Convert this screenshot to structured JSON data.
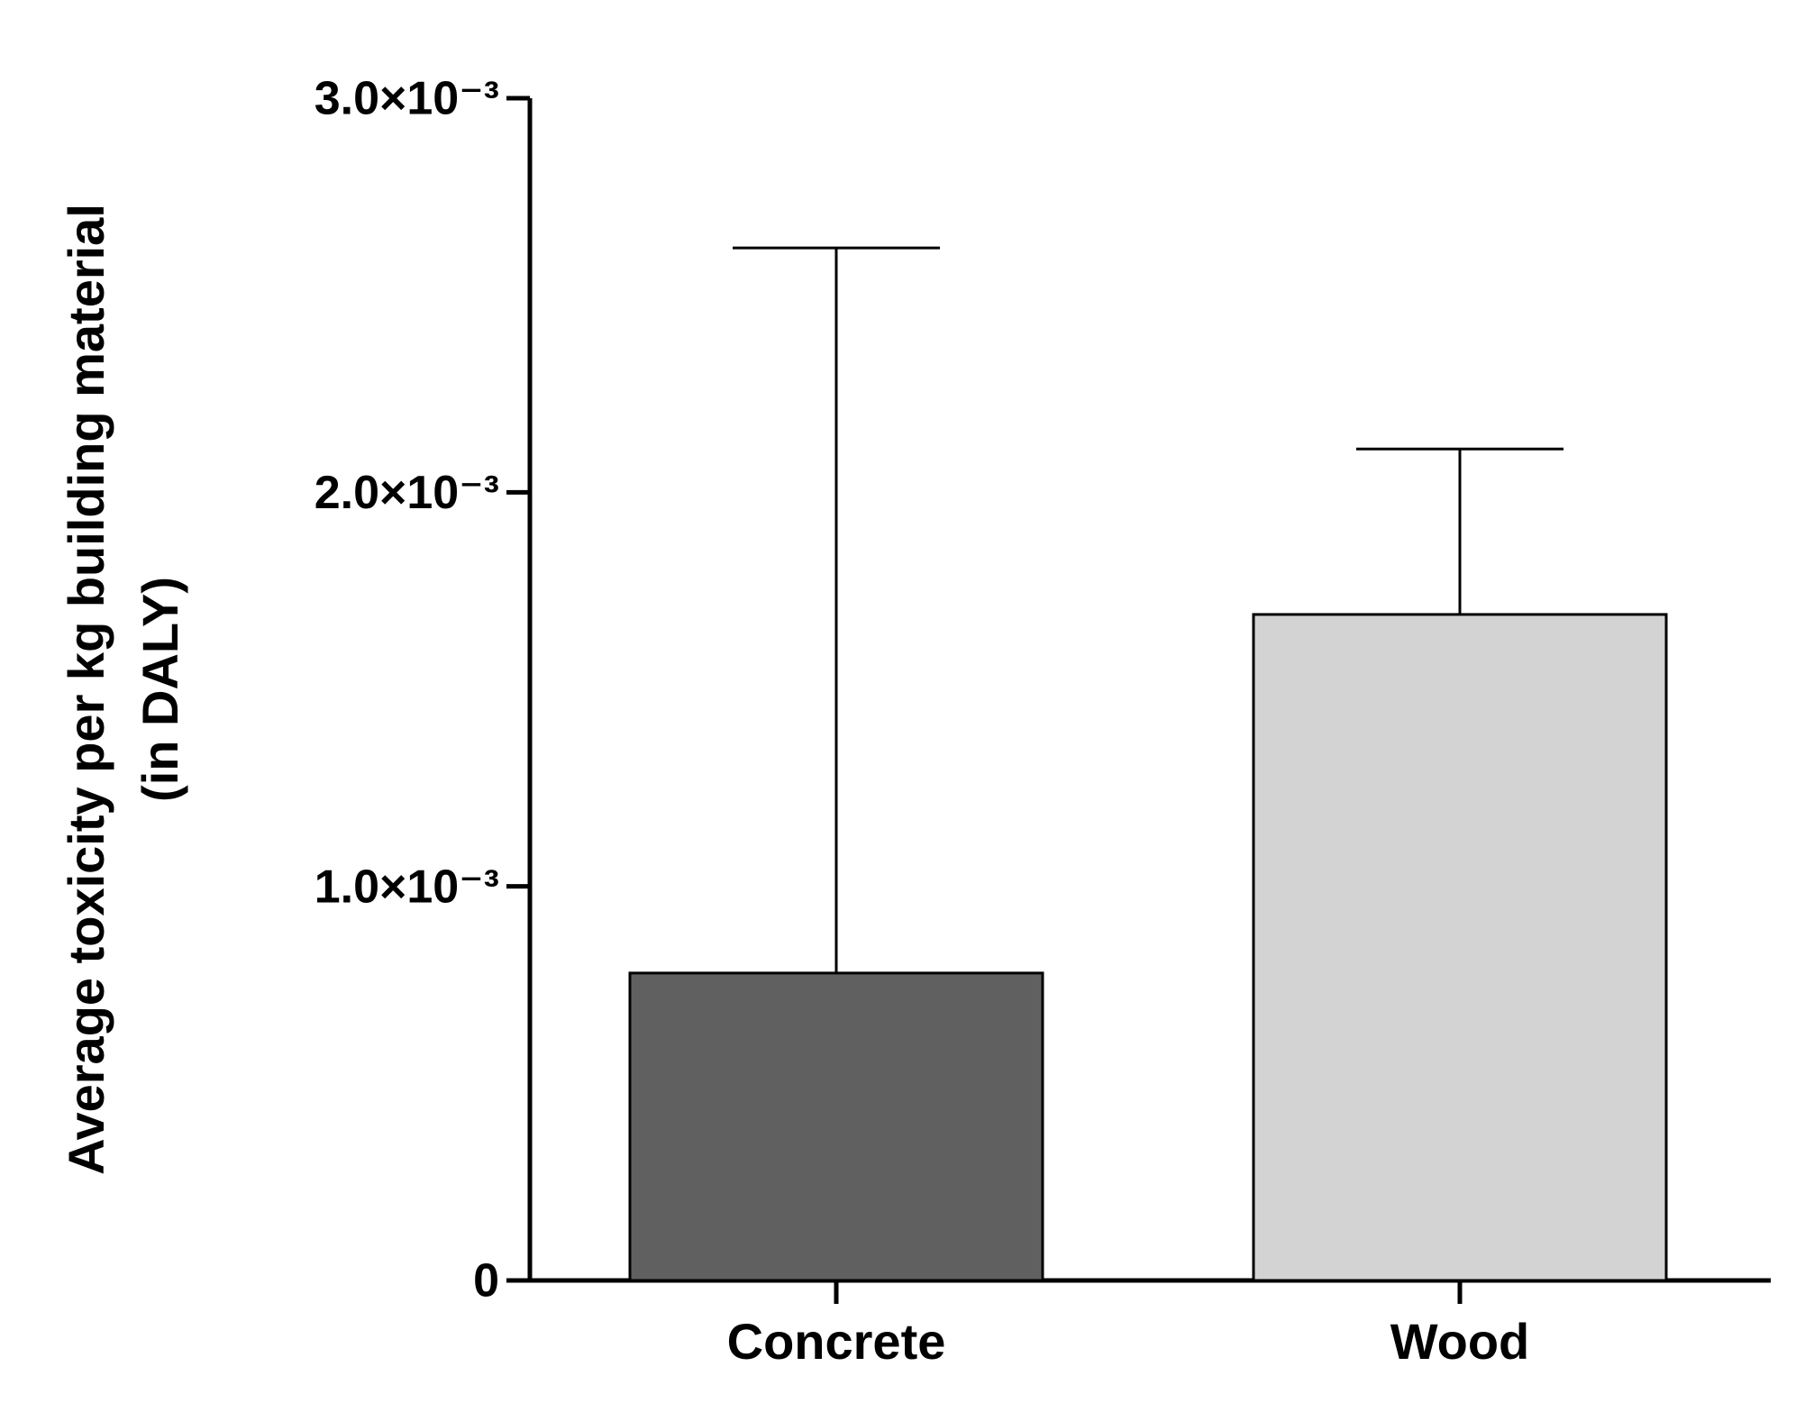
{
  "chart_data": {
    "type": "bar",
    "ylabel": [
      "Average toxicity per kg building material",
      "(in DALY)"
    ],
    "categories": [
      "Concrete",
      "Wood"
    ],
    "values": [
      0.00078,
      0.00169
    ],
    "errors": [
      0.00184,
      0.00042
    ],
    "colors": [
      "#606060",
      "#d3d3d3"
    ],
    "ylim": [
      0,
      0.003
    ],
    "yticks": [
      0,
      {
        "value": 0.001,
        "label": "1.0×10⁻³"
      },
      {
        "value": 0.002,
        "label": "2.0×10⁻³"
      },
      {
        "value": 0.003,
        "label": "3.0×10⁻³"
      }
    ],
    "grid": false
  }
}
